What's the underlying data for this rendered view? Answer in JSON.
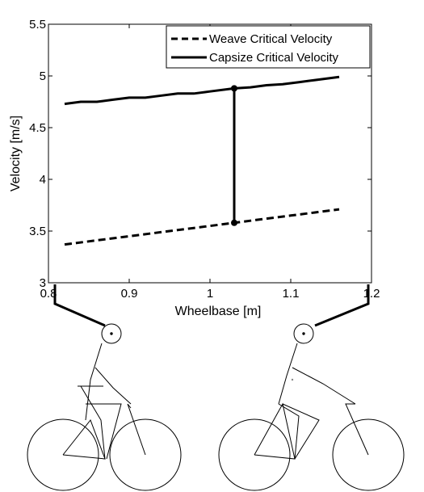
{
  "chart_data": {
    "type": "line",
    "xlabel": "Wheelbase [m]",
    "ylabel": "Velocity [m/s]",
    "xlim": [
      0.8,
      1.2
    ],
    "ylim": [
      3,
      5.5
    ],
    "xticks": [
      "0.8",
      "0.9",
      "1",
      "1.1",
      "1.2"
    ],
    "yticks": [
      "3",
      "3.5",
      "4",
      "4.5",
      "5",
      "5.5"
    ],
    "grid": false,
    "legend_position": "top-right",
    "series": [
      {
        "name": "Weave Critical Velocity",
        "style": "dashed",
        "x": [
          0.82,
          0.86,
          0.9,
          0.94,
          0.98,
          1.03,
          1.07,
          1.1,
          1.13,
          1.16
        ],
        "y": [
          3.37,
          3.41,
          3.45,
          3.49,
          3.53,
          3.58,
          3.62,
          3.65,
          3.68,
          3.71
        ]
      },
      {
        "name": "Capsize Critical Velocity",
        "style": "solid",
        "x": [
          0.82,
          0.84,
          0.86,
          0.88,
          0.9,
          0.92,
          0.94,
          0.96,
          0.98,
          1.0,
          1.03,
          1.05,
          1.07,
          1.09,
          1.11,
          1.13,
          1.16
        ],
        "y": [
          4.73,
          4.75,
          4.75,
          4.77,
          4.79,
          4.79,
          4.81,
          4.83,
          4.83,
          4.85,
          4.88,
          4.89,
          4.91,
          4.92,
          4.94,
          4.96,
          4.99
        ]
      }
    ],
    "annotation": {
      "type": "vertical-segment",
      "x": 1.03,
      "y_low": 3.58,
      "y_high": 4.88
    }
  }
}
